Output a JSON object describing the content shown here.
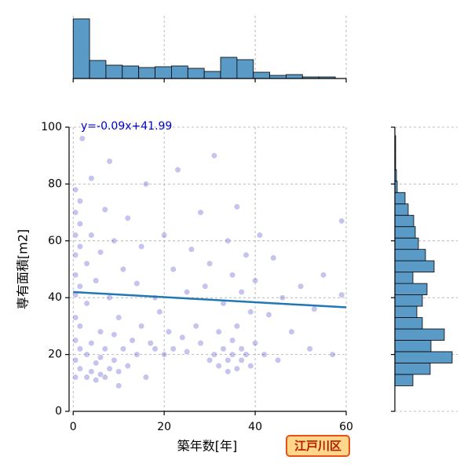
{
  "chart_data": [
    {
      "type": "scatter",
      "xlabel": "築年数[年]",
      "ylabel": "専有面積[m2]",
      "annotation": "y=-0.09x+41.99",
      "badge": "江戸川区",
      "color": "#3c3cc8",
      "opacity": 0.3,
      "grid": true,
      "x": [
        0.5,
        0.5,
        0.5,
        0.5,
        0.5,
        0.5,
        0.5,
        0.5,
        0.5,
        0.5,
        1.5,
        1.5,
        1.5,
        1.5,
        1.5,
        1.5,
        1.5,
        2,
        3,
        3,
        3,
        3,
        4,
        4,
        4,
        4,
        5,
        5,
        5,
        6,
        6,
        6,
        6,
        7,
        7,
        7,
        8,
        8,
        8,
        9,
        9,
        9,
        10,
        10,
        10,
        11,
        11,
        12,
        12,
        13,
        14,
        14,
        15,
        15,
        16,
        16,
        17,
        18,
        18,
        19,
        20,
        20,
        21,
        22,
        22,
        23,
        24,
        25,
        25,
        26,
        27,
        28,
        28,
        29,
        30,
        30,
        31,
        31,
        32,
        32,
        33,
        33,
        34,
        34,
        34,
        35,
        35,
        35,
        36,
        36,
        36,
        37,
        37,
        37,
        38,
        38,
        39,
        39,
        40,
        40,
        41,
        42,
        43,
        44,
        45,
        46,
        48,
        50,
        52,
        53,
        55,
        57,
        59,
        59
      ],
      "values": [
        12,
        18,
        25,
        33,
        41,
        48,
        55,
        62,
        70,
        78,
        15,
        22,
        30,
        44,
        58,
        66,
        74,
        96,
        12,
        20,
        38,
        52,
        14,
        24,
        62,
        82,
        11,
        17,
        46,
        13,
        19,
        28,
        56,
        12,
        22,
        71,
        15,
        40,
        88,
        18,
        27,
        60,
        9,
        14,
        33,
        22,
        50,
        16,
        68,
        25,
        20,
        45,
        30,
        58,
        12,
        80,
        24,
        22,
        40,
        35,
        20,
        62,
        28,
        22,
        50,
        85,
        26,
        21,
        42,
        57,
        30,
        24,
        70,
        44,
        18,
        52,
        20,
        90,
        16,
        28,
        22,
        38,
        14,
        18,
        60,
        20,
        25,
        48,
        15,
        30,
        72,
        18,
        22,
        42,
        20,
        55,
        16,
        35,
        24,
        46,
        62,
        20,
        34,
        54,
        18,
        40,
        28,
        44,
        22,
        36,
        48,
        20,
        41,
        67
      ],
      "regression": {
        "color": "#1f77b4",
        "x": [
          0,
          60
        ],
        "values": [
          41.99,
          36.59
        ]
      },
      "xlim": [
        -0.9,
        60
      ],
      "xticks": [
        0,
        20,
        40,
        60
      ],
      "ylim": [
        0,
        100
      ],
      "yticks": [
        0,
        20,
        40,
        60,
        80,
        100
      ]
    },
    {
      "type": "histogram",
      "orientation": "vertical",
      "color": "#5a9ac6",
      "bins": [
        0,
        3.6,
        7.2,
        10.8,
        14.4,
        18,
        21.6,
        25.2,
        28.8,
        32.4,
        36,
        39.6,
        43.2,
        46.8,
        50.4,
        54,
        57.6
      ],
      "values": [
        76,
        23,
        17,
        16,
        14,
        15,
        16,
        13,
        9,
        27,
        24,
        8,
        4,
        5,
        2,
        2
      ],
      "xlim": [
        -0.9,
        60
      ],
      "xticks": [
        0,
        20,
        40,
        60
      ],
      "ylim": [
        0,
        80
      ],
      "grid": true
    },
    {
      "type": "histogram",
      "orientation": "horizontal",
      "color": "#5a9ac6",
      "bins": [
        9,
        13,
        17,
        21,
        25,
        29,
        33,
        37,
        41,
        45,
        49,
        53,
        57,
        61,
        65,
        69,
        73,
        77,
        81,
        85,
        89,
        93,
        97
      ],
      "values": [
        23,
        45,
        73,
        46,
        63,
        35,
        28,
        35,
        41,
        23,
        50,
        39,
        30,
        26,
        24,
        17,
        13,
        3,
        2,
        1,
        1,
        1
      ],
      "ylim": [
        0,
        100
      ],
      "yticks": [
        0,
        20,
        40,
        60,
        80,
        100
      ],
      "xlim": [
        0,
        80
      ],
      "grid": true
    }
  ]
}
